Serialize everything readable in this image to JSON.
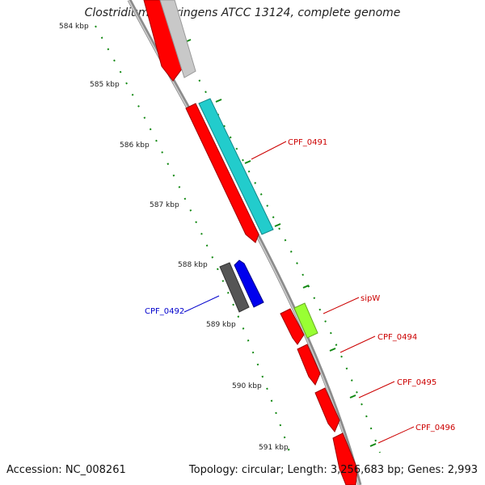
{
  "title": "Clostridium perfringens ATCC 13124, complete genome",
  "footer": {
    "accession": "Accession: NC_008261",
    "summary": "Topology: circular; Length: 3,256,683 bp; Genes: 2,993"
  },
  "ticks": [
    "584 kbp",
    "585 kbp",
    "586 kbp",
    "587 kbp",
    "588 kbp",
    "589 kbp",
    "590 kbp",
    "591 kbp"
  ],
  "gene_labels": [
    {
      "key": "cpf0491",
      "text": "CPF_0491",
      "color": "#cc0000"
    },
    {
      "key": "sipw",
      "text": "sipW",
      "color": "#cc0000"
    },
    {
      "key": "cpf0494",
      "text": "CPF_0494",
      "color": "#cc0000"
    },
    {
      "key": "cpf0495",
      "text": "CPF_0495",
      "color": "#cc0000"
    },
    {
      "key": "cpf0496",
      "text": "CPF_0496",
      "color": "#cc0000"
    },
    {
      "key": "cpf0492",
      "text": "CPF_0492",
      "color": "#0000cc"
    }
  ],
  "colors": {
    "backbone": "#8c8c8c",
    "forward_cds": "#ff0000",
    "reverse_cds": "#ff0000",
    "cyan_feature": "#22cccc",
    "gray_feature": "#c8c8c8",
    "blue_feature": "#0000ee",
    "dark_gray_feature": "#555555",
    "green_feature": "#99ff33",
    "tick_green": "#118811"
  }
}
